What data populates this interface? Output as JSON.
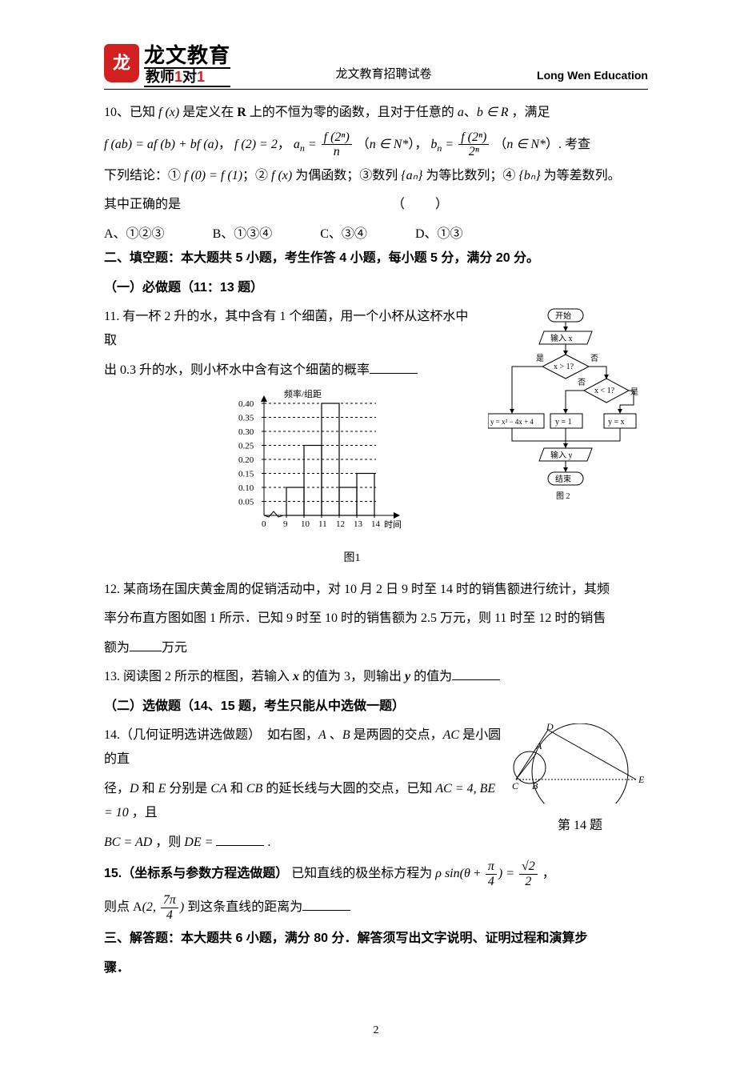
{
  "header": {
    "logo_badge": "龙",
    "logo_title": "龙文教育",
    "logo_sub_prefix": "教师",
    "logo_sub_red1": "1",
    "logo_sub_mid": "对",
    "logo_sub_red2": "1",
    "center": "龙文教育招聘试卷",
    "right": "Long Wen Education"
  },
  "q10": {
    "line1_a": "10、已知 ",
    "line1_b": " 是定义在 ",
    "line1_c": " 上的不恒为零的函数，且对于任意的 ",
    "line1_d": "、",
    "line1_e": " ，满足",
    "fx": "f (x)",
    "R": "R",
    "a": "a",
    "b_in_R": "b ∈ R",
    "line2_fab": "f (ab) = af (b) + bf (a)",
    "line2_sep1": "，",
    "line2_f2": "f (2) = 2",
    "line2_sep2": "，",
    "line2_an_lhs": "a",
    "line2_an_sub": "n",
    "line2_eq": " = ",
    "line2_an_num": "f (2ⁿ)",
    "line2_an_den": "n",
    "line2_paren1_a": "（",
    "line2_nN": "n ∈ N*",
    "line2_paren1_b": "），",
    "line2_bn_lhs": "b",
    "line2_bn_num": "f (2ⁿ)",
    "line2_bn_den": "2ⁿ",
    "line2_tail": "）. 考查",
    "line3_a": "下列结论：① ",
    "line3_f0f1": "f (0) = f (1)",
    "line3_b": "；② ",
    "line3_fx2": "f (x)",
    "line3_c": " 为偶函数；③数列 ",
    "line3_an": "{aₙ}",
    "line3_d": " 为等比数列；④ ",
    "line3_bn": "{bₙ}",
    "line3_e": " 为等差数列。",
    "line4": "其中正确的是",
    "paren": "（　　）",
    "optA": "A、①②③",
    "optB": "B、①③④",
    "optC": "C、③④",
    "optD": "D、①③"
  },
  "section2": {
    "title": "二、填空题：本大题共 5 小题，考生作答 4 小题，每小题 5 分，满分 20 分。",
    "sub1": "（一）必做题（11：13 题）"
  },
  "q11": {
    "line1": "11. 有一杯 2 升的水，其中含有 1 个细菌，用一个小杯从这杯水中取",
    "line2": "出 0.3 升的水，则小杯水中含有这个细菌的概率"
  },
  "histogram": {
    "y_label": "频率/组距",
    "x_label": "时间",
    "y_ticks": [
      "0.05",
      "0.10",
      "0.15",
      "0.20",
      "0.25",
      "0.30",
      "0.35",
      "0.40"
    ],
    "x_ticks": [
      "0",
      "9",
      "10",
      "11",
      "12",
      "13",
      "14"
    ],
    "bars": [
      0.1,
      0.25,
      0.4,
      0.1,
      0.15
    ],
    "caption": "图1",
    "axis_color": "#000000",
    "grid_dash": "3,3"
  },
  "flowchart": {
    "nodes": {
      "start": "开始",
      "input": "输入 x",
      "cond1": "x > 1?",
      "cond2": "x < 1?",
      "y1": "y = x² − 4x + 4",
      "y2": "y = 1",
      "y3": "y = x",
      "output": "输入 y",
      "end": "结束"
    },
    "labels": {
      "yes": "是",
      "no": "否"
    },
    "caption": "图 2"
  },
  "q12": {
    "text_a": "12. 某商场在国庆黄金周的促销活动中，对 10 月 2 日 9 时至 14 时的销售额进行统计，其频",
    "text_b": "率分布直方图如图 1 所示．已知 9 时至 10 时的销售额为 2.5 万元，则 11 时至 12 时的销售",
    "text_c": "额为",
    "text_d": "万元"
  },
  "q13": {
    "text_a": "13. 阅读图 2 所示的框图，若输入 ",
    "x": "x",
    "text_b": " 的值为 3，则输出 ",
    "y": "y",
    "text_c": " 的值为"
  },
  "section2b": {
    "title": "（二）选做题（14、15 题，考生只能从中选做一题）"
  },
  "q14": {
    "lead": "14.（几何证明选讲选做题）　如右图，",
    "A": "A",
    "sep1": " 、",
    "B": "B",
    "t1": " 是两圆的交点，",
    "AC": "AC",
    "t2": " 是小圆的直",
    "line2a": "径，",
    "D": "D",
    "t3": " 和 ",
    "E": "E",
    "t4": " 分别是 ",
    "CA": "CA",
    "t5": " 和 ",
    "CB": "CB",
    "t6": " 的延长线与大圆的交点，已知 ",
    "AC4": "AC = 4, BE = 10",
    "t7": " ，且",
    "line3a": "BC = AD",
    "t8": " ，则 ",
    "DE": "DE =",
    "t9": " .",
    "fig_caption": "第 14 题",
    "pts": {
      "A": "A",
      "B": "B",
      "C": "C",
      "D": "D",
      "E": "E"
    }
  },
  "q15": {
    "lead_bold": "15.（坐标系与参数方程选做题）",
    "t1": "已知直线的极坐标方程为 ",
    "rho": "ρ",
    "sin": " sin(",
    "theta": "θ",
    "plus": " + ",
    "pi4_num": "π",
    "pi4_den": "4",
    "close": ") = ",
    "rhs_num": "√2",
    "rhs_den": "2",
    "comma": " ，",
    "line2a": "则点 ",
    "Apt": "A",
    "Aopen": "(2, ",
    "A_num": "7π",
    "A_den": "4",
    "Aclose": ")",
    "t2": " 到这条直线的距离为"
  },
  "section3": {
    "title_a": "三、解答题：本大题共 6 小题，满分 80 分．解答须写出文字说明、证明过程和演算步",
    "title_b": "骤．"
  },
  "page_number": "2"
}
